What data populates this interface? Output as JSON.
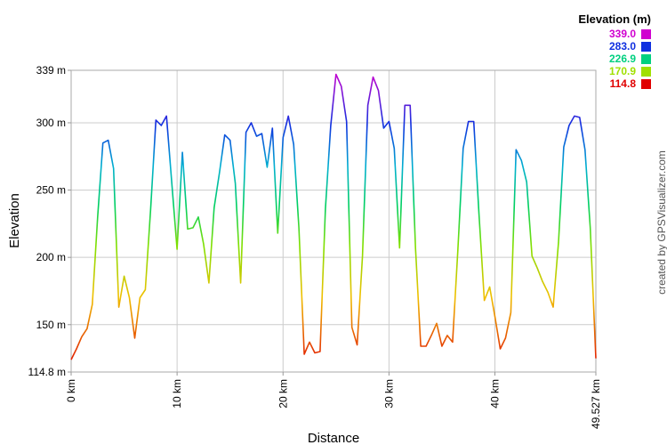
{
  "chart_data": {
    "type": "line",
    "xlabel": "Distance",
    "ylabel": "Elevation",
    "xlim": [
      0,
      49.527
    ],
    "ylim": [
      114.8,
      339
    ],
    "x_ticks": [
      {
        "value": 0,
        "label": "0 km"
      },
      {
        "value": 10,
        "label": "10 km"
      },
      {
        "value": 20,
        "label": "20 km"
      },
      {
        "value": 30,
        "label": "30 km"
      },
      {
        "value": 40,
        "label": "40 km"
      },
      {
        "value": 49.527,
        "label": "49.527 km"
      }
    ],
    "y_ticks": [
      {
        "value": 114.8,
        "label": "114.8 m"
      },
      {
        "value": 150,
        "label": "150 m"
      },
      {
        "value": 200,
        "label": "200 m"
      },
      {
        "value": 250,
        "label": "250 m"
      },
      {
        "value": 300,
        "label": "300 m"
      },
      {
        "value": 339,
        "label": "339 m"
      }
    ],
    "grid": true,
    "legend": {
      "title": "Elevation (m)",
      "position": "top-right",
      "entries": [
        {
          "label": "339.0",
          "color": "#d000d0"
        },
        {
          "label": "283.0",
          "color": "#1030e0"
        },
        {
          "label": "226.9",
          "color": "#00d080"
        },
        {
          "label": "170.9",
          "color": "#a0e000"
        },
        {
          "label": "114.8",
          "color": "#e00000"
        }
      ]
    },
    "series": [
      {
        "x": [
          0,
          0.5,
          1,
          1.5,
          2,
          2.5,
          3,
          3.5,
          4,
          4.5,
          5,
          5.5,
          6,
          6.5,
          7,
          7.5,
          8,
          8.5,
          9,
          9.5,
          10,
          10.5,
          11,
          11.5,
          12,
          12.5,
          13,
          13.5,
          14,
          14.5,
          15,
          15.5,
          16,
          16.5,
          17,
          17.5,
          18,
          18.5,
          19,
          19.5,
          20,
          20.5,
          21,
          21.5,
          22,
          22.5,
          23,
          23.5,
          24,
          24.5,
          25,
          25.5,
          26,
          26.5,
          27,
          27.5,
          28,
          28.5,
          29,
          29.5,
          30,
          30.5,
          31,
          31.5,
          32,
          32.5,
          33,
          33.5,
          34,
          34.5,
          35,
          35.5,
          36,
          36.5,
          37,
          37.5,
          38,
          38.5,
          39,
          39.5,
          40,
          40.5,
          41,
          41.5,
          42,
          42.5,
          43,
          43.5,
          44,
          44.5,
          45,
          45.5,
          46,
          46.5,
          47,
          47.5,
          48,
          48.5,
          49,
          49.527
        ],
        "y": [
          124,
          132,
          141,
          147,
          165,
          230,
          285,
          287,
          266,
          163,
          186,
          170,
          140,
          170,
          176,
          235,
          302,
          298,
          305,
          255,
          206,
          278,
          221,
          222,
          230,
          210,
          181,
          237,
          263,
          291,
          287,
          255,
          181,
          293,
          300,
          290,
          292,
          267,
          296,
          218,
          289,
          305,
          284,
          222,
          128,
          137,
          129,
          130,
          236,
          298,
          336,
          327,
          301,
          148,
          135,
          201,
          313,
          334,
          324,
          296,
          301,
          281,
          207,
          313,
          313,
          207,
          134,
          134,
          142,
          151,
          134,
          142,
          137,
          205,
          281,
          301,
          301,
          232,
          168,
          178,
          156,
          132,
          140,
          159,
          280,
          272,
          256,
          201,
          192,
          182,
          174,
          163,
          211,
          282,
          298,
          305,
          304,
          280,
          222,
          125
        ]
      }
    ]
  },
  "credit": "created by GPSVisualizer.com"
}
